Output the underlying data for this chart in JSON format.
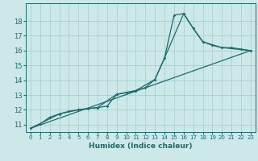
{
  "title": "",
  "xlabel": "Humidex (Indice chaleur)",
  "xlim": [
    -0.5,
    23.5
  ],
  "ylim": [
    10.5,
    19.2
  ],
  "xticks": [
    0,
    1,
    2,
    3,
    4,
    5,
    6,
    7,
    8,
    9,
    10,
    11,
    12,
    13,
    14,
    15,
    16,
    17,
    18,
    19,
    20,
    21,
    22,
    23
  ],
  "yticks": [
    11,
    12,
    13,
    14,
    15,
    16,
    17,
    18
  ],
  "bg_color": "#cce8e8",
  "grid_color": "#aacfcf",
  "line_color": "#1a6b6b",
  "series": [
    [
      0,
      10.75
    ],
    [
      1,
      11.05
    ],
    [
      2,
      11.5
    ],
    [
      3,
      11.72
    ],
    [
      4,
      11.9
    ],
    [
      5,
      12.0
    ],
    [
      6,
      12.1
    ],
    [
      7,
      12.15
    ],
    [
      8,
      12.25
    ],
    [
      9,
      13.05
    ],
    [
      10,
      13.15
    ],
    [
      11,
      13.3
    ],
    [
      12,
      13.5
    ],
    [
      13,
      14.05
    ],
    [
      14,
      15.5
    ],
    [
      15,
      18.4
    ],
    [
      16,
      18.5
    ],
    [
      17,
      17.5
    ],
    [
      18,
      16.6
    ],
    [
      19,
      16.35
    ],
    [
      20,
      16.2
    ],
    [
      21,
      16.2
    ],
    [
      22,
      16.1
    ],
    [
      23,
      16.0
    ]
  ],
  "line_straight": [
    [
      0,
      10.75
    ],
    [
      23,
      16.0
    ]
  ],
  "line_mid": [
    [
      0,
      10.75
    ],
    [
      3,
      11.72
    ],
    [
      5,
      12.0
    ],
    [
      7,
      12.15
    ],
    [
      9,
      13.05
    ],
    [
      11,
      13.3
    ],
    [
      13,
      14.05
    ],
    [
      14,
      15.5
    ],
    [
      16,
      18.5
    ],
    [
      17,
      17.5
    ],
    [
      18,
      16.6
    ],
    [
      20,
      16.2
    ],
    [
      23,
      16.0
    ]
  ]
}
